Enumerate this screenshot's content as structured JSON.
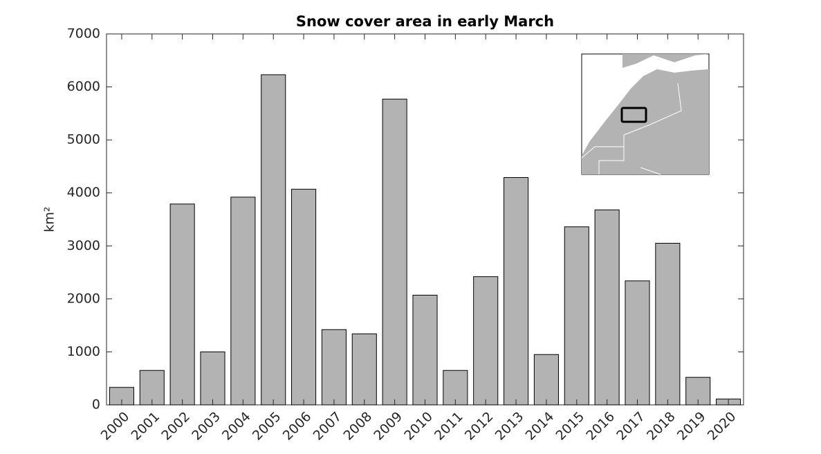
{
  "chart_data": {
    "type": "bar",
    "title": "Snow cover area in early March",
    "y_label": "km²",
    "categories": [
      "2000",
      "2001",
      "2002",
      "2003",
      "2004",
      "2005",
      "2006",
      "2007",
      "2008",
      "2009",
      "2010",
      "2011",
      "2012",
      "2013",
      "2014",
      "2015",
      "2016",
      "2017",
      "2018",
      "2019",
      "2020"
    ],
    "values": [
      330,
      650,
      3790,
      1000,
      3920,
      6230,
      4070,
      1420,
      1340,
      5770,
      2070,
      650,
      2420,
      4290,
      950,
      3360,
      3680,
      2340,
      3050,
      520,
      110
    ],
    "color": "#b3b3b3",
    "ylim": [
      0,
      7000
    ],
    "yticks": [
      0,
      1000,
      2000,
      3000,
      4000,
      5000,
      6000,
      7000
    ],
    "grid": false
  }
}
